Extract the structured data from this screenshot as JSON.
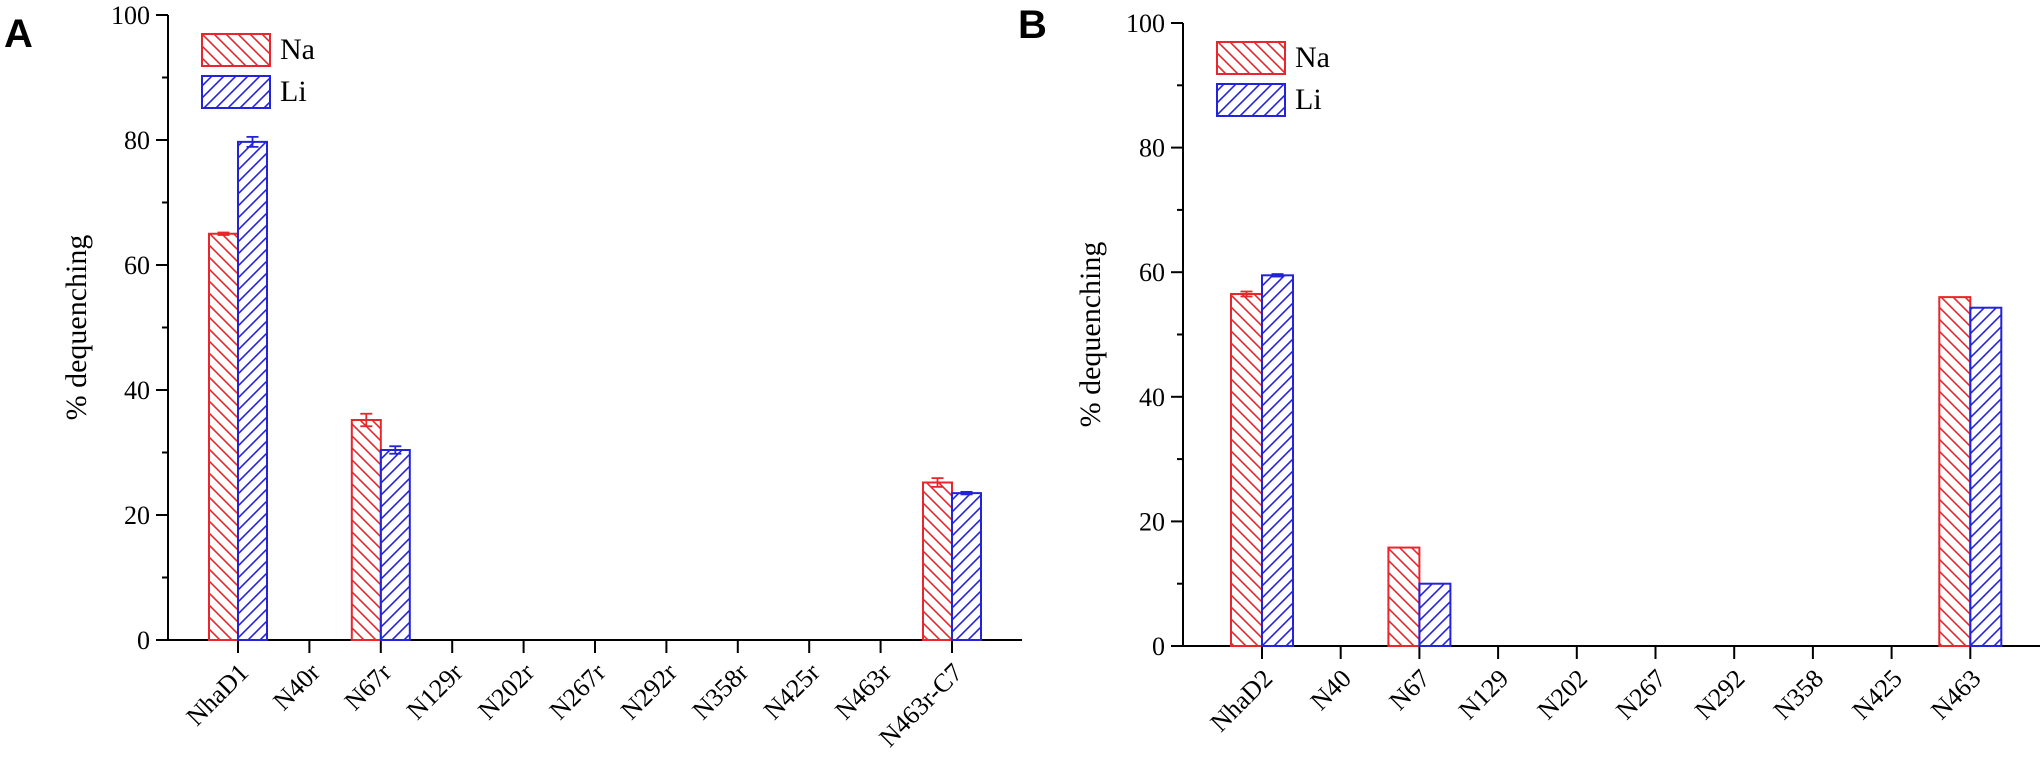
{
  "series_styles": [
    {
      "name": "Na",
      "color": "#e8262b",
      "hatch": "back"
    },
    {
      "name": "Li",
      "color": "#2323d8",
      "hatch": "forward"
    }
  ],
  "chart_data": [
    {
      "panel": "A",
      "type": "bar",
      "ylabel": "% dequenching",
      "xlabel": "",
      "ylim": [
        0,
        100
      ],
      "yticks": [
        0,
        20,
        40,
        60,
        80,
        100
      ],
      "legend": {
        "position": "top-left",
        "entries": [
          "Na",
          "Li"
        ]
      },
      "categories": [
        "NhaD1",
        "N40r",
        "N67r",
        "N129r",
        "N202r",
        "N267r",
        "N292r",
        "N358r",
        "N425r",
        "N463r",
        "N463r-C7"
      ],
      "series": [
        {
          "name": "Na",
          "values": [
            65,
            0,
            35.2,
            0,
            0,
            0,
            0,
            0,
            0,
            0,
            25.2
          ],
          "errors": [
            0.2,
            0,
            1.0,
            0,
            0,
            0,
            0,
            0,
            0,
            0,
            0.7
          ]
        },
        {
          "name": "Li",
          "values": [
            79.7,
            0,
            30.4,
            0,
            0,
            0,
            0,
            0,
            0,
            0,
            23.5
          ],
          "errors": [
            0.8,
            0,
            0.6,
            0,
            0,
            0,
            0,
            0,
            0,
            0,
            0.2
          ]
        }
      ]
    },
    {
      "panel": "B",
      "type": "bar",
      "ylabel": "% dequenching",
      "xlabel": "",
      "ylim": [
        0,
        100
      ],
      "yticks": [
        0,
        20,
        40,
        60,
        80,
        100
      ],
      "legend": {
        "position": "top-left",
        "entries": [
          "Na",
          "Li"
        ]
      },
      "categories": [
        "NhaD2",
        "N40",
        "N67",
        "N129",
        "N202",
        "N267",
        "N292",
        "N358",
        "N425",
        "N463"
      ],
      "series": [
        {
          "name": "Na",
          "values": [
            56.5,
            0,
            15.8,
            0,
            0,
            0,
            0,
            0,
            0,
            56
          ],
          "errors": [
            0.4,
            0,
            0,
            0,
            0,
            0,
            0,
            0,
            0,
            0
          ]
        },
        {
          "name": "Li",
          "values": [
            59.5,
            0,
            10,
            0,
            0,
            0,
            0,
            0,
            0,
            54.3
          ],
          "errors": [
            0.2,
            0,
            0,
            0,
            0,
            0,
            0,
            0,
            0,
            0
          ]
        }
      ]
    }
  ]
}
